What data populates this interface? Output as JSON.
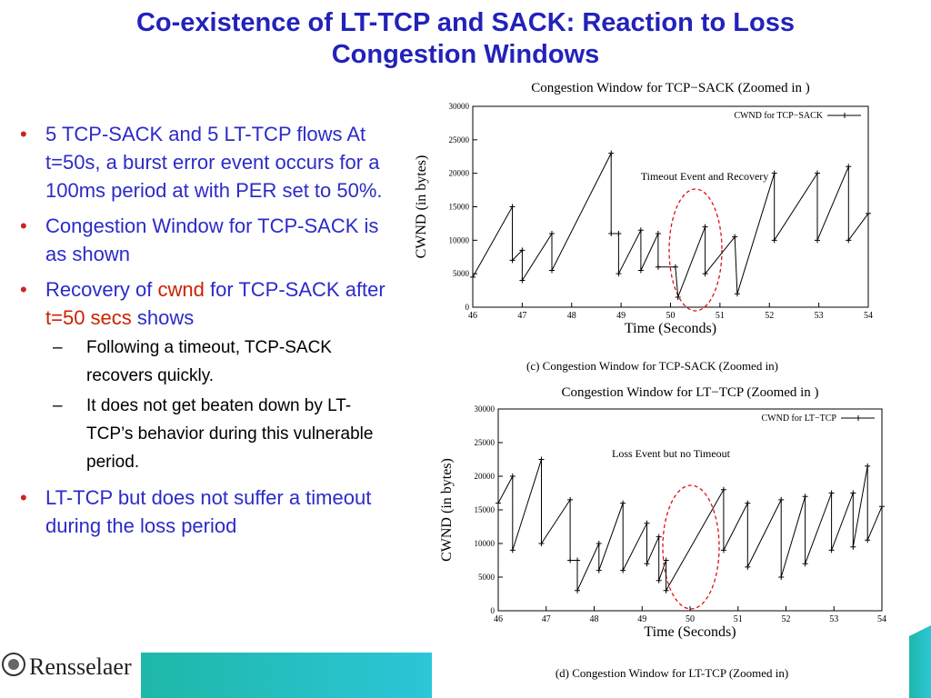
{
  "title_lines": [
    "Co-existence of LT-TCP and SACK: Reaction to Loss",
    "Congestion Windows"
  ],
  "bullets": [
    {
      "text": "5 TCP-SACK and 5 LT-TCP flows At t=50s, a burst error event occurs for a 100ms period at with PER set to 50%."
    },
    {
      "text": "Congestion Window for TCP-SACK is as shown"
    },
    {
      "parts": [
        "Recovery of ",
        "cwnd",
        " for TCP-SACK after ",
        "t=50 secs",
        " shows"
      ],
      "sub": [
        "Following a timeout, TCP-SACK recovers quickly.",
        "It does not get beaten down by LT-TCP’s behavior during this vulnerable period."
      ]
    },
    {
      "text": "LT-TCP but does not suffer a timeout during the loss period"
    }
  ],
  "logo": "Rensselaer",
  "chart_data": [
    {
      "type": "line",
      "title": "Congestion Window for TCP−SACK (Zoomed in )",
      "xlabel": "Time (Seconds)",
      "ylabel": "CWND (in bytes)",
      "caption": "(c) Congestion Window for TCP-SACK (Zoomed in)",
      "annotation": "Timeout Event and Recovery",
      "xlim": [
        46,
        54
      ],
      "ylim": [
        0,
        30000
      ],
      "xticks": [
        46,
        47,
        48,
        49,
        50,
        51,
        52,
        53,
        54
      ],
      "yticks": [
        0,
        5000,
        10000,
        15000,
        20000,
        25000,
        30000
      ],
      "x": [
        46.0,
        46.8,
        46.8,
        47.0,
        47.0,
        47.6,
        47.6,
        48.8,
        48.8,
        48.95,
        48.95,
        49.4,
        49.4,
        49.75,
        49.75,
        50.1,
        50.15,
        50.7,
        50.7,
        51.3,
        51.35,
        52.1,
        52.1,
        52.97,
        52.97,
        53.6,
        53.6,
        54.0
      ],
      "series": [
        {
          "name": "CWND for TCP−SACK",
          "color": "#000000",
          "values": [
            4500,
            15000,
            7000,
            8500,
            4000,
            11000,
            5500,
            23000,
            11000,
            11000,
            5000,
            11500,
            5500,
            11000,
            6000,
            6000,
            1500,
            12000,
            5000,
            10500,
            2000,
            20000,
            10000,
            20000,
            10000,
            21000,
            10000,
            14000
          ]
        }
      ]
    },
    {
      "type": "line",
      "title": "Congestion Window for LT−TCP (Zoomed in )",
      "xlabel": "Time (Seconds)",
      "ylabel": "CWND (in bytes)",
      "caption": "(d) Congestion Window for LT-TCP (Zoomed in)",
      "annotation": "Loss Event but no Timeout",
      "xlim": [
        46,
        54
      ],
      "ylim": [
        0,
        30000
      ],
      "xticks": [
        46,
        47,
        48,
        49,
        50,
        51,
        52,
        53,
        54
      ],
      "yticks": [
        0,
        5000,
        10000,
        15000,
        20000,
        25000,
        30000
      ],
      "x": [
        46.0,
        46.3,
        46.3,
        46.9,
        46.9,
        47.5,
        47.5,
        47.65,
        47.65,
        48.1,
        48.1,
        48.6,
        48.6,
        49.1,
        49.1,
        49.35,
        49.35,
        49.5,
        49.5,
        50.7,
        50.7,
        51.2,
        51.2,
        51.9,
        51.9,
        52.4,
        52.4,
        52.95,
        52.95,
        53.4,
        53.4,
        53.7,
        53.7,
        54.0
      ],
      "series": [
        {
          "name": "CWND for LT−TCP",
          "color": "#000000",
          "values": [
            16000,
            20000,
            9000,
            22500,
            10000,
            16500,
            7500,
            7500,
            3000,
            10000,
            6000,
            16000,
            6000,
            13000,
            7000,
            11000,
            4500,
            7500,
            3000,
            18000,
            9000,
            16000,
            6500,
            16500,
            5000,
            17000,
            7000,
            17500,
            9000,
            17500,
            9500,
            21500,
            10500,
            15500
          ]
        }
      ]
    }
  ]
}
